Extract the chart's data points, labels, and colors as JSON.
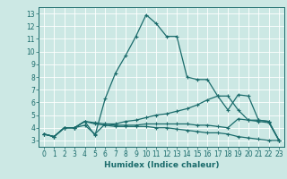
{
  "xlabel": "Humidex (Indice chaleur)",
  "bg_color": "#cce8e4",
  "grid_color": "#ffffff",
  "line_color": "#1a6b6b",
  "xlim": [
    -0.5,
    23.5
  ],
  "ylim": [
    2.5,
    13.5
  ],
  "xticks": [
    0,
    1,
    2,
    3,
    4,
    5,
    6,
    7,
    8,
    9,
    10,
    11,
    12,
    13,
    14,
    15,
    16,
    17,
    18,
    19,
    20,
    21,
    22,
    23
  ],
  "yticks": [
    3,
    4,
    5,
    6,
    7,
    8,
    9,
    10,
    11,
    12,
    13
  ],
  "curves": [
    {
      "x": [
        0,
        1,
        2,
        3,
        4,
        5,
        6,
        7,
        8,
        9,
        10,
        11,
        12,
        13,
        14,
        15,
        16,
        17,
        18,
        19,
        20,
        21,
        22,
        23
      ],
      "y": [
        3.5,
        3.3,
        4.0,
        4.0,
        4.5,
        3.4,
        6.3,
        8.3,
        9.7,
        11.2,
        12.9,
        12.2,
        11.2,
        11.2,
        8.0,
        7.8,
        7.8,
        6.5,
        5.4,
        6.6,
        6.5,
        4.6,
        4.5,
        3.0
      ]
    },
    {
      "x": [
        0,
        1,
        2,
        3,
        4,
        5,
        6,
        7,
        8,
        9,
        10,
        11,
        12,
        13,
        14,
        15,
        16,
        17,
        18,
        19,
        20,
        21,
        22,
        23
      ],
      "y": [
        3.5,
        3.3,
        4.0,
        4.0,
        4.5,
        4.4,
        4.3,
        4.3,
        4.5,
        4.6,
        4.8,
        5.0,
        5.1,
        5.3,
        5.5,
        5.8,
        6.2,
        6.5,
        6.5,
        5.4,
        4.6,
        4.6,
        4.5,
        3.0
      ]
    },
    {
      "x": [
        0,
        1,
        2,
        3,
        4,
        5,
        6,
        7,
        8,
        9,
        10,
        11,
        12,
        13,
        14,
        15,
        16,
        17,
        18,
        19,
        20,
        21,
        22,
        23
      ],
      "y": [
        3.5,
        3.3,
        4.0,
        4.0,
        4.5,
        4.3,
        4.2,
        4.1,
        4.1,
        4.1,
        4.1,
        4.0,
        4.0,
        3.9,
        3.8,
        3.7,
        3.6,
        3.6,
        3.5,
        3.3,
        3.2,
        3.1,
        3.0,
        3.0
      ]
    },
    {
      "x": [
        0,
        1,
        2,
        3,
        4,
        5,
        6,
        7,
        8,
        9,
        10,
        11,
        12,
        13,
        14,
        15,
        16,
        17,
        18,
        19,
        20,
        21,
        22,
        23
      ],
      "y": [
        3.5,
        3.3,
        4.0,
        4.0,
        4.2,
        3.5,
        4.3,
        4.2,
        4.2,
        4.2,
        4.3,
        4.3,
        4.3,
        4.3,
        4.3,
        4.2,
        4.2,
        4.1,
        4.0,
        4.7,
        4.6,
        4.5,
        4.4,
        3.0
      ]
    }
  ],
  "tick_fontsize": 5.5,
  "xlabel_fontsize": 6.5,
  "marker_size": 3,
  "linewidth": 0.9
}
